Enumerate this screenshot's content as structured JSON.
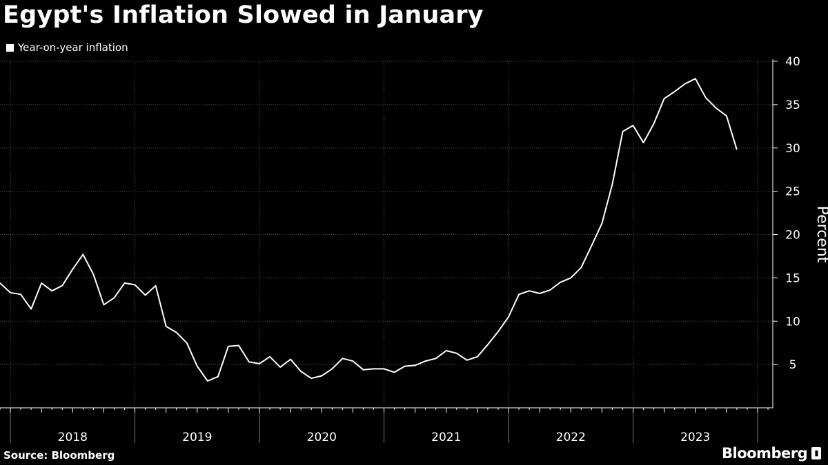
{
  "title": "Egypt's Inflation Slowed in January",
  "legend_label": "Year-on-year inflation",
  "source": "Source: Bloomberg",
  "brand": "Bloomberg",
  "colors": {
    "background": "#000000",
    "line": "#ffffff",
    "grid": "#555555"
  },
  "chart_data": {
    "type": "line",
    "title": "Egypt's Inflation Slowed in January",
    "ylabel": "Percent",
    "xlabel": "",
    "ylim": [
      0,
      40
    ],
    "yticks": [
      5,
      10,
      15,
      20,
      25,
      30,
      35,
      40
    ],
    "x_start": "2017-12",
    "x_end": "2024-01",
    "year_labels": [
      "2018",
      "2019",
      "2020",
      "2021",
      "2022",
      "2023"
    ],
    "grid": true,
    "legend_position": "top-left",
    "series": [
      {
        "name": "Year-on-year inflation",
        "values": [
          14.4,
          13.3,
          13.1,
          11.4,
          14.4,
          13.5,
          14.1,
          16.0,
          17.7,
          15.4,
          11.9,
          12.7,
          14.4,
          14.2,
          13.0,
          14.1,
          9.4,
          8.7,
          7.5,
          4.8,
          3.1,
          3.6,
          7.1,
          7.2,
          5.3,
          5.1,
          5.9,
          4.7,
          5.6,
          4.2,
          3.4,
          3.7,
          4.5,
          5.7,
          5.4,
          4.4,
          4.5,
          4.5,
          4.1,
          4.8,
          4.9,
          5.4,
          5.7,
          6.6,
          6.3,
          5.5,
          5.9,
          7.3,
          8.8,
          10.5,
          13.1,
          13.5,
          13.2,
          13.6,
          14.5,
          15.0,
          16.2,
          18.7,
          21.3,
          25.8,
          31.9,
          32.6,
          30.6,
          32.8,
          35.7,
          36.5,
          37.4,
          38.0,
          35.8,
          34.6,
          33.7,
          29.8
        ]
      }
    ]
  }
}
